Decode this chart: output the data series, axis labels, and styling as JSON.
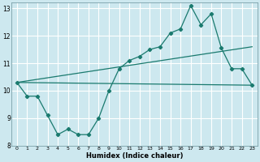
{
  "xlabel": "Humidex (Indice chaleur)",
  "bg_color": "#cde8ef",
  "grid_color": "#b0d8e0",
  "line_color": "#1a7a6e",
  "xlim": [
    -0.5,
    23.5
  ],
  "ylim": [
    8,
    13.2
  ],
  "yticks": [
    8,
    9,
    10,
    11,
    12,
    13
  ],
  "xticks": [
    0,
    1,
    2,
    3,
    4,
    5,
    6,
    7,
    8,
    9,
    10,
    11,
    12,
    13,
    14,
    15,
    16,
    17,
    18,
    19,
    20,
    21,
    22,
    23
  ],
  "line1_x": [
    0,
    1,
    2,
    3,
    4,
    5,
    6,
    7,
    8,
    9,
    10,
    11,
    12,
    13,
    14,
    15,
    16,
    17,
    18,
    19,
    20,
    21,
    22,
    23
  ],
  "line1_y": [
    10.3,
    9.8,
    9.8,
    9.1,
    8.4,
    8.6,
    8.4,
    8.4,
    9.0,
    10.0,
    10.8,
    11.1,
    11.25,
    11.5,
    11.6,
    12.1,
    12.25,
    13.1,
    12.4,
    12.8,
    11.55,
    10.8,
    10.8,
    10.2
  ],
  "line2_x": [
    0,
    23
  ],
  "line2_y": [
    10.3,
    11.6
  ],
  "line3_x": [
    0,
    23
  ],
  "line3_y": [
    10.3,
    10.2
  ]
}
